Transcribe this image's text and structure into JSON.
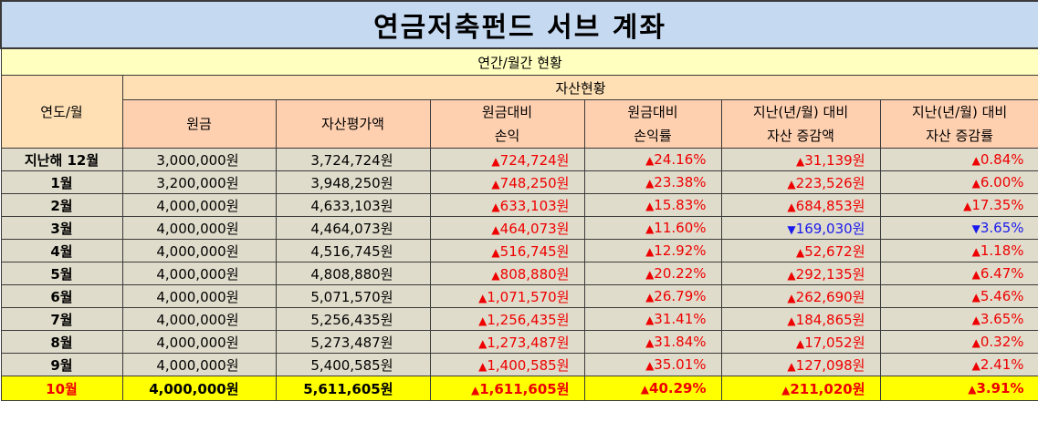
{
  "title": "연금저축펀드 서브 계좌",
  "subtitle": "연간/월간 현황",
  "headers": {
    "year_month": "연도/월",
    "asset_status": "자산현황",
    "principal": "원금",
    "valuation": "자산평가액",
    "pnl_line1": "원금대비",
    "pnl_line2": "손익",
    "rate_line1": "원금대비",
    "rate_line2": "손익률",
    "delta_line1": "지난(년/월) 대비",
    "delta_line2": "자산 증감액",
    "delta_rate_line1": "지난(년/월) 대비",
    "delta_rate_line2": "자산 증감률"
  },
  "rows": [
    {
      "label": "지난해 12월",
      "principal": "3,000,000원",
      "valuation": "3,724,724원",
      "pnl": "724,724원",
      "pnl_dir": "up",
      "rate": "24.16%",
      "rate_dir": "up",
      "delta": "31,139원",
      "delta_dir": "up",
      "delta_rate": "0.84%",
      "delta_rate_dir": "up"
    },
    {
      "label": "1월",
      "principal": "3,200,000원",
      "valuation": "3,948,250원",
      "pnl": "748,250원",
      "pnl_dir": "up",
      "rate": "23.38%",
      "rate_dir": "up",
      "delta": "223,526원",
      "delta_dir": "up",
      "delta_rate": "6.00%",
      "delta_rate_dir": "up"
    },
    {
      "label": "2월",
      "principal": "4,000,000원",
      "valuation": "4,633,103원",
      "pnl": "633,103원",
      "pnl_dir": "up",
      "rate": "15.83%",
      "rate_dir": "up",
      "delta": "684,853원",
      "delta_dir": "up",
      "delta_rate": "17.35%",
      "delta_rate_dir": "up"
    },
    {
      "label": "3월",
      "principal": "4,000,000원",
      "valuation": "4,464,073원",
      "pnl": "464,073원",
      "pnl_dir": "up",
      "rate": "11.60%",
      "rate_dir": "up",
      "delta": "169,030원",
      "delta_dir": "down",
      "delta_rate": "3.65%",
      "delta_rate_dir": "down"
    },
    {
      "label": "4월",
      "principal": "4,000,000원",
      "valuation": "4,516,745원",
      "pnl": "516,745원",
      "pnl_dir": "up",
      "rate": "12.92%",
      "rate_dir": "up",
      "delta": "52,672원",
      "delta_dir": "up",
      "delta_rate": "1.18%",
      "delta_rate_dir": "up"
    },
    {
      "label": "5월",
      "principal": "4,000,000원",
      "valuation": "4,808,880원",
      "pnl": "808,880원",
      "pnl_dir": "up",
      "rate": "20.22%",
      "rate_dir": "up",
      "delta": "292,135원",
      "delta_dir": "up",
      "delta_rate": "6.47%",
      "delta_rate_dir": "up"
    },
    {
      "label": "6월",
      "principal": "4,000,000원",
      "valuation": "5,071,570원",
      "pnl": "1,071,570원",
      "pnl_dir": "up",
      "rate": "26.79%",
      "rate_dir": "up",
      "delta": "262,690원",
      "delta_dir": "up",
      "delta_rate": "5.46%",
      "delta_rate_dir": "up"
    },
    {
      "label": "7월",
      "principal": "4,000,000원",
      "valuation": "5,256,435원",
      "pnl": "1,256,435원",
      "pnl_dir": "up",
      "rate": "31.41%",
      "rate_dir": "up",
      "delta": "184,865원",
      "delta_dir": "up",
      "delta_rate": "3.65%",
      "delta_rate_dir": "up"
    },
    {
      "label": "8월",
      "principal": "4,000,000원",
      "valuation": "5,273,487원",
      "pnl": "1,273,487원",
      "pnl_dir": "up",
      "rate": "31.84%",
      "rate_dir": "up",
      "delta": "17,052원",
      "delta_dir": "up",
      "delta_rate": "0.32%",
      "delta_rate_dir": "up"
    },
    {
      "label": "9월",
      "principal": "4,000,000원",
      "valuation": "5,400,585원",
      "pnl": "1,400,585원",
      "pnl_dir": "up",
      "rate": "35.01%",
      "rate_dir": "up",
      "delta": "127,098원",
      "delta_dir": "up",
      "delta_rate": "2.41%",
      "delta_rate_dir": "up"
    },
    {
      "label": "10월",
      "principal": "4,000,000원",
      "valuation": "5,611,605원",
      "pnl": "1,611,605원",
      "pnl_dir": "up",
      "rate": "40.29%",
      "rate_dir": "up",
      "delta": "211,020원",
      "delta_dir": "up",
      "delta_rate": "3.91%",
      "delta_rate_dir": "up"
    }
  ],
  "markers": {
    "up": "▲",
    "down": "▼"
  },
  "colors": {
    "up": "#ee0000",
    "down": "#1a1aee",
    "highlight": "#ffff00",
    "title_bg": "#c5d9f1"
  }
}
